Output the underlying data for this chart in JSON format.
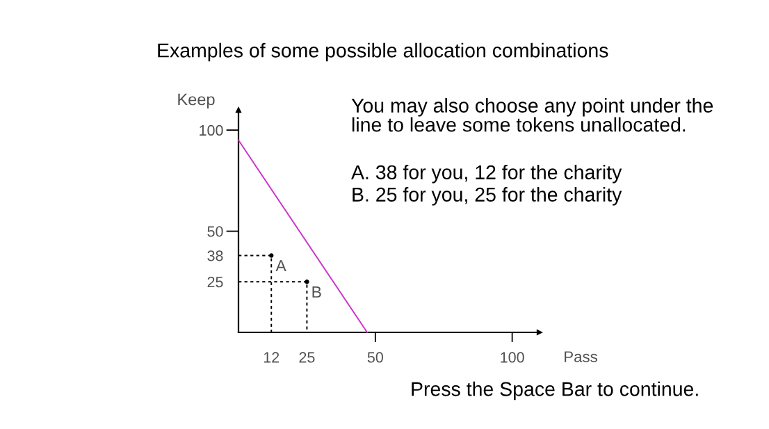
{
  "chart_data": {
    "type": "line",
    "title": "Examples of some possible allocation combinations",
    "xlabel": "Pass",
    "ylabel": "Keep",
    "xlim": [
      0,
      110
    ],
    "ylim": [
      0,
      110
    ],
    "xticks": [
      12,
      25,
      50,
      100
    ],
    "yticks": [
      25,
      38,
      50,
      100
    ],
    "line_style": "solid",
    "series": [
      {
        "color": "#cc33cc",
        "x": [
          0,
          47
        ],
        "values": [
          95,
          0
        ]
      },
      {
        "color": "#000000",
        "line_style": "dotted",
        "x": [
          0,
          12,
          12
        ],
        "values": [
          38,
          38,
          0
        ]
      },
      {
        "color": "#000000",
        "line_style": "dotted",
        "x": [
          0,
          25,
          25
        ],
        "values": [
          25,
          25,
          0
        ]
      },
      {
        "type": "scatter",
        "color": "#000000",
        "marker": "circle",
        "x": [
          12,
          25
        ],
        "values": [
          38,
          25
        ]
      }
    ],
    "annotations": [
      "You may also choose any point under the\nline to leave some tokens unallocated.",
      "A. 38 for you, 12 for the charity",
      "B. 25 for you, 25 for the charity",
      "Press the Space Bar to continue.",
      {
        "text": "A",
        "x": 12,
        "y": 38
      },
      {
        "text": "B",
        "x": 25,
        "y": 25
      }
    ]
  }
}
